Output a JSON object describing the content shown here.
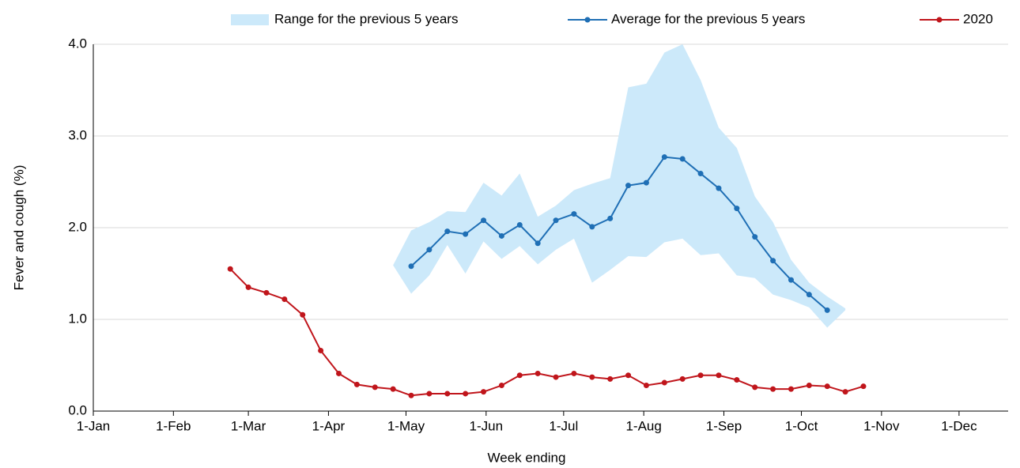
{
  "chart_data": {
    "type": "line",
    "x_label": "Week ending",
    "y_label": "Fever and cough (%)",
    "x": [
      "23-Feb",
      "1-Mar",
      "8-Mar",
      "15-Mar",
      "22-Mar",
      "29-Mar",
      "5-Apr",
      "12-Apr",
      "19-Apr",
      "26-Apr",
      "3-May",
      "10-May",
      "17-May",
      "24-May",
      "31-May",
      "7-Jun",
      "14-Jun",
      "21-Jun",
      "28-Jun",
      "5-Jul",
      "12-Jul",
      "19-Jul",
      "26-Jul",
      "2-Aug",
      "9-Aug",
      "16-Aug",
      "23-Aug",
      "30-Aug",
      "6-Sep",
      "13-Sep",
      "20-Sep",
      "27-Sep",
      "4-Oct",
      "11-Oct",
      "18-Oct",
      "25-Oct"
    ],
    "xlim": [
      "1-Jan",
      "20-Dec"
    ],
    "xticks": [
      "1-Jan",
      "1-Feb",
      "1-Mar",
      "1-Apr",
      "1-May",
      "1-Jun",
      "1-Jul",
      "1-Aug",
      "1-Sep",
      "1-Oct",
      "1-Nov",
      "1-Dec"
    ],
    "ylim": [
      0,
      4
    ],
    "yticks": [
      {
        "value": 0,
        "label": "0.0"
      },
      {
        "value": 1,
        "label": "1.0"
      },
      {
        "value": 2,
        "label": "2.0"
      },
      {
        "value": 3,
        "label": "3.0"
      },
      {
        "value": 4,
        "label": "4.0"
      }
    ],
    "grid": true,
    "legend": "top",
    "series": [
      {
        "name": "Range for the previous 5 years",
        "type": "area",
        "color": "#cce9fa",
        "low": [
          null,
          null,
          null,
          null,
          null,
          null,
          null,
          null,
          null,
          1.59,
          1.28,
          1.48,
          1.81,
          1.5,
          1.85,
          1.66,
          1.8,
          1.6,
          1.76,
          1.88,
          1.4,
          1.54,
          1.69,
          1.68,
          1.84,
          1.88,
          1.7,
          1.72,
          1.48,
          1.45,
          1.27,
          1.21,
          1.13,
          0.91,
          1.1,
          null
        ],
        "high": [
          null,
          null,
          null,
          null,
          null,
          null,
          null,
          null,
          null,
          1.59,
          1.97,
          2.06,
          2.18,
          2.17,
          2.49,
          2.35,
          2.59,
          2.12,
          2.24,
          2.41,
          2.48,
          2.54,
          3.53,
          3.57,
          3.91,
          4.0,
          3.61,
          3.09,
          2.87,
          2.34,
          2.06,
          1.65,
          1.4,
          1.25,
          1.12,
          null
        ]
      },
      {
        "name": "Average for the previous 5 years",
        "type": "line",
        "color": "#1f6fb5",
        "values": [
          null,
          null,
          null,
          null,
          null,
          null,
          null,
          null,
          null,
          null,
          1.58,
          1.76,
          1.96,
          1.93,
          2.08,
          1.91,
          2.03,
          1.83,
          2.08,
          2.15,
          2.01,
          2.1,
          2.46,
          2.49,
          2.77,
          2.75,
          2.59,
          2.43,
          2.21,
          1.9,
          1.64,
          1.43,
          1.27,
          1.1,
          null,
          null
        ]
      },
      {
        "name": "2020",
        "type": "line",
        "color": "#c0151b",
        "values": [
          1.55,
          1.35,
          1.29,
          1.22,
          1.05,
          0.66,
          0.41,
          0.29,
          0.26,
          0.24,
          0.17,
          0.19,
          0.19,
          0.19,
          0.21,
          0.28,
          0.39,
          0.41,
          0.37,
          0.41,
          0.37,
          0.35,
          0.39,
          0.28,
          0.31,
          0.35,
          0.39,
          0.39,
          0.34,
          0.26,
          0.24,
          0.24,
          0.28,
          0.27,
          0.21,
          0.27
        ]
      }
    ]
  }
}
